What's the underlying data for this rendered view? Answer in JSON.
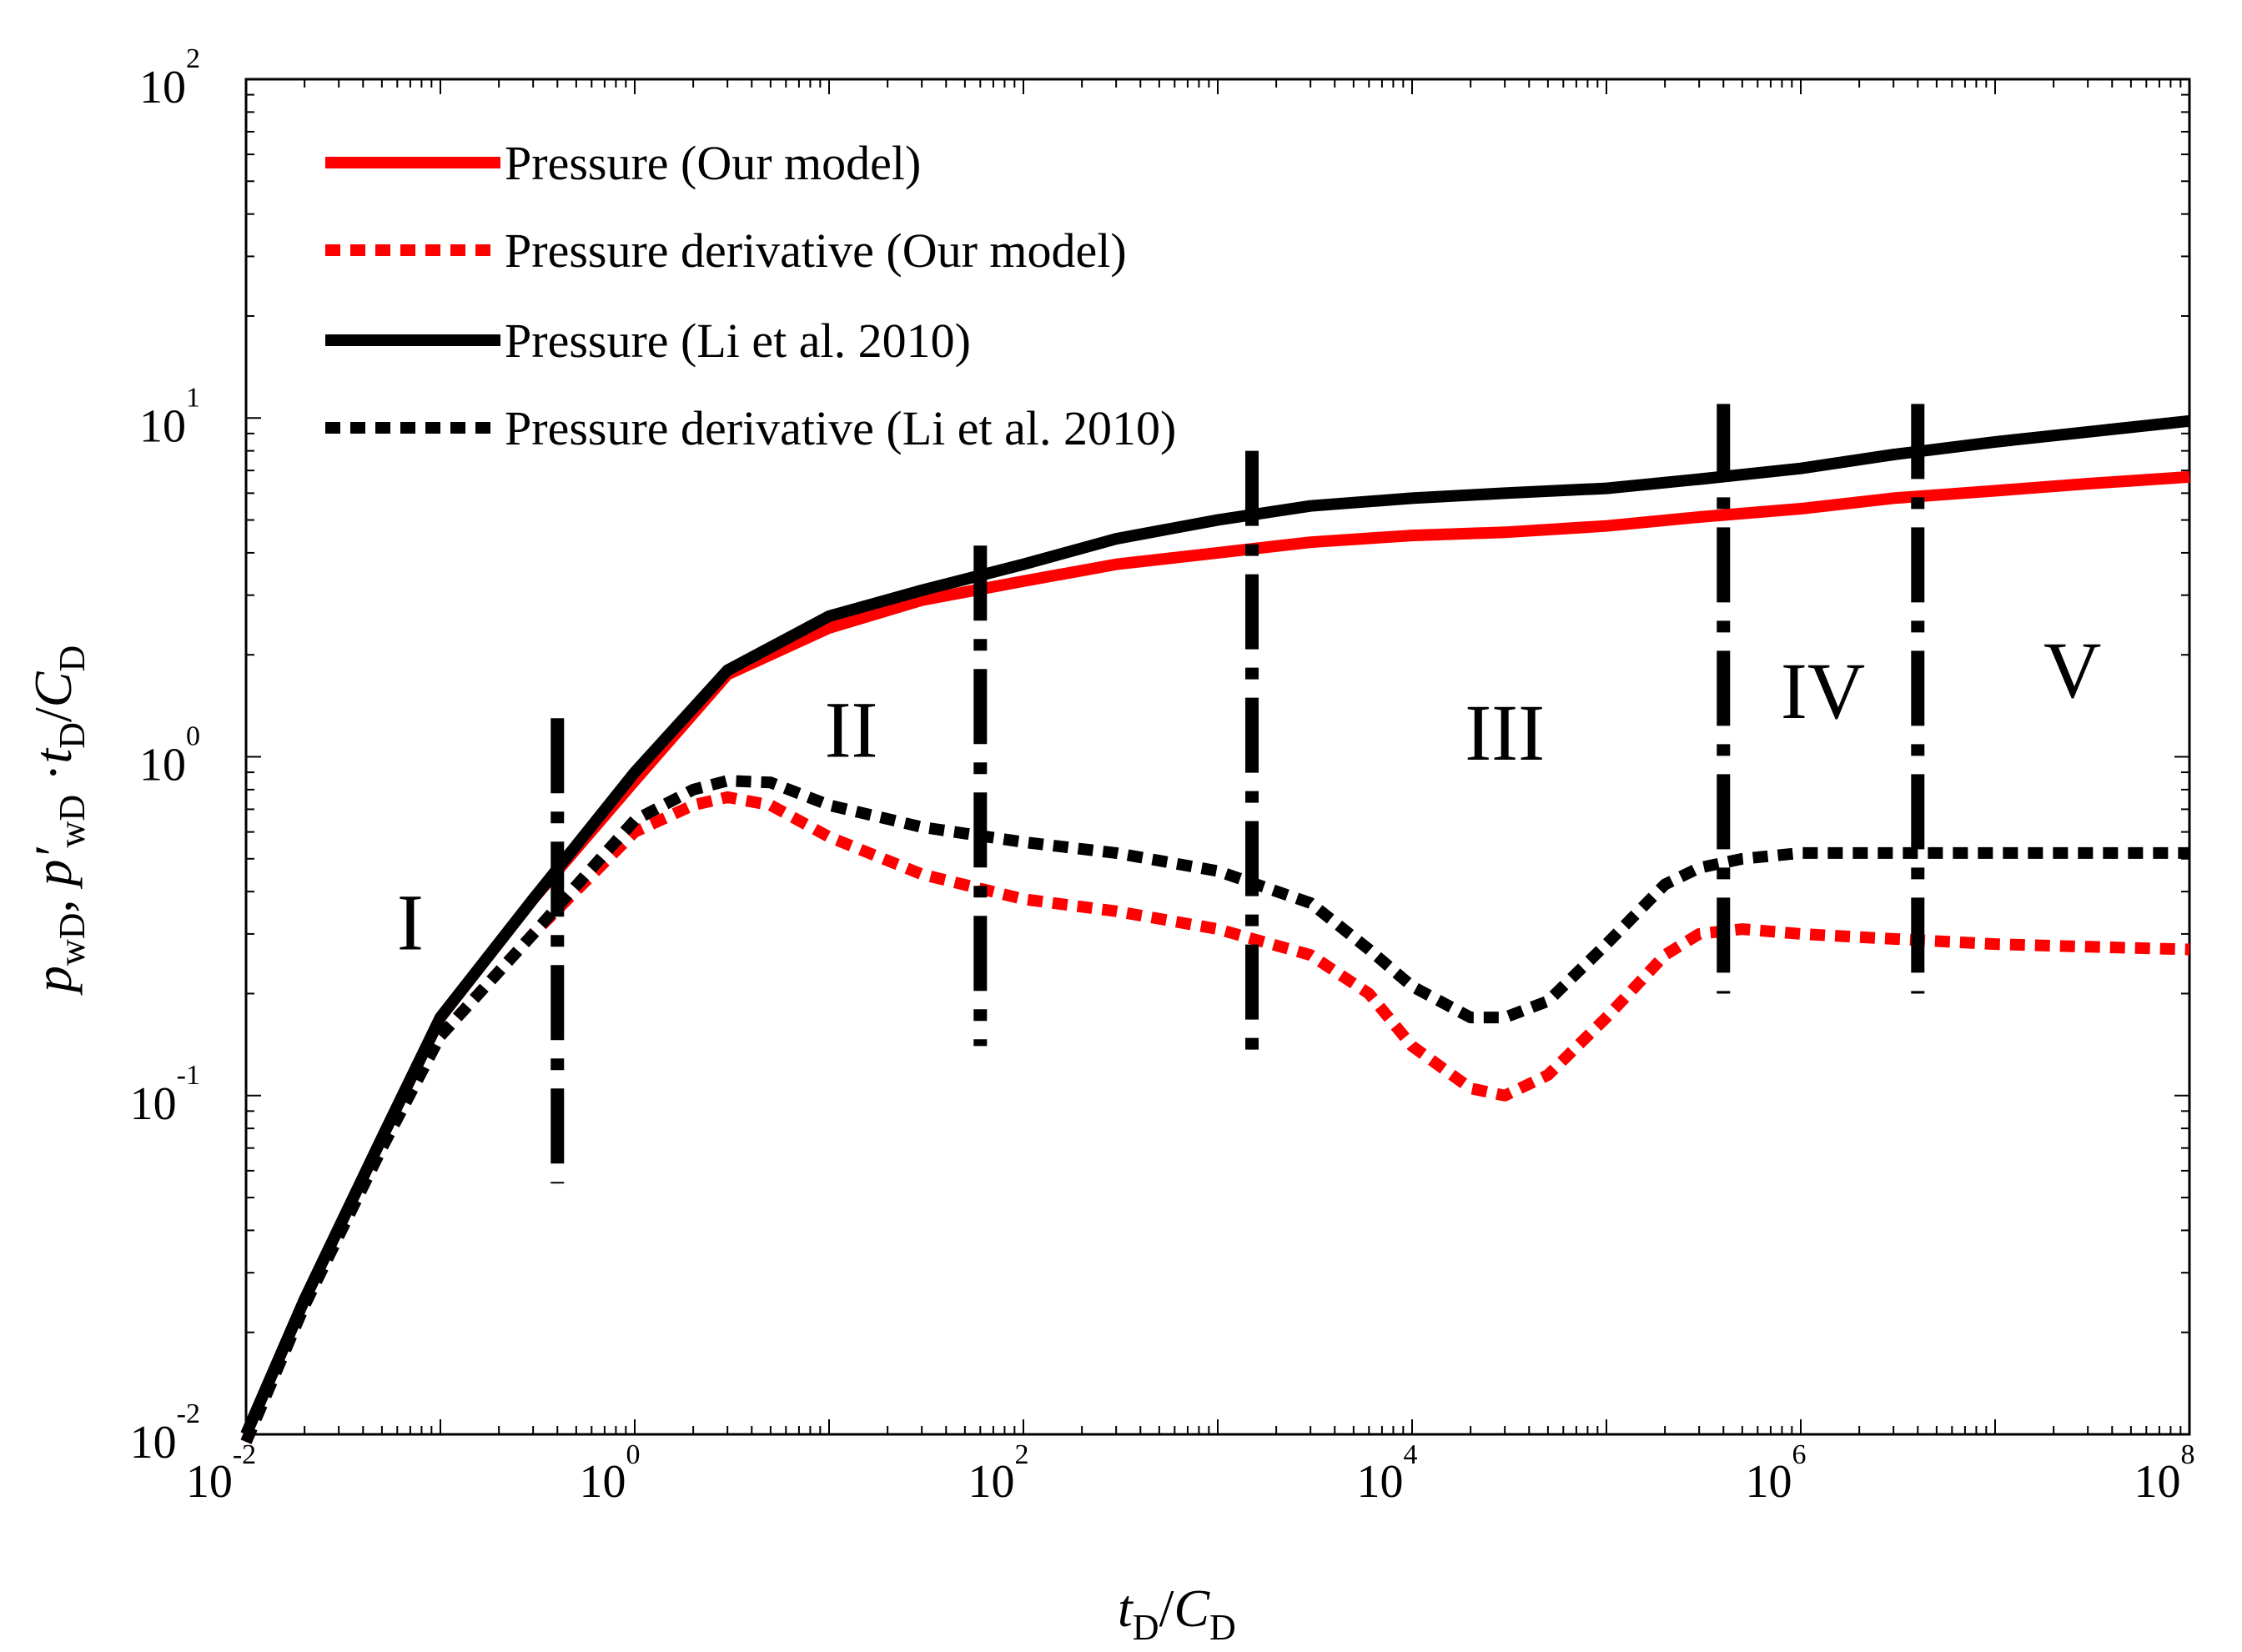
{
  "chart_data": {
    "type": "line",
    "xscale": "log",
    "yscale": "log",
    "xlim": [
      0.01,
      100000000
    ],
    "ylim": [
      0.01,
      100
    ],
    "x_ticks": [
      {
        "base": "10",
        "exp": "-2"
      },
      {
        "base": "10",
        "exp": "0"
      },
      {
        "base": "10",
        "exp": "2"
      },
      {
        "base": "10",
        "exp": "4"
      },
      {
        "base": "10",
        "exp": "6"
      },
      {
        "base": "10",
        "exp": "8"
      }
    ],
    "y_ticks": [
      {
        "base": "10",
        "exp": "-2"
      },
      {
        "base": "10",
        "exp": "-1"
      },
      {
        "base": "10",
        "exp": "0"
      },
      {
        "base": "10",
        "exp": "1"
      },
      {
        "base": "10",
        "exp": "2"
      }
    ],
    "xlabel": {
      "t": "t",
      "sub1": "D",
      "slash": "/",
      "c": "C",
      "sub2": "D"
    },
    "ylabel": {
      "p": "p",
      "sub_wd": "wD",
      "comma": ", ",
      "pprime": "p′",
      "sub_wd2": "wD",
      "dot": " ·",
      "t": "t",
      "sub_d": "D",
      "slash": "/",
      "c": "C",
      "sub_d2": "D"
    },
    "legend_position": "top-left",
    "series": [
      {
        "name": "Pressure (Our model)",
        "color": "#ff0000",
        "style": "solid",
        "points": [
          [
            0.01,
            0.01
          ],
          [
            0.02,
            0.025
          ],
          [
            0.05,
            0.075
          ],
          [
            0.1,
            0.17
          ],
          [
            0.3,
            0.38
          ],
          [
            1,
            0.85
          ],
          [
            3,
            1.75
          ],
          [
            10,
            2.4
          ],
          [
            30,
            2.9
          ],
          [
            100,
            3.3
          ],
          [
            300,
            3.7
          ],
          [
            1000,
            4.0
          ],
          [
            3000,
            4.3
          ],
          [
            10000,
            4.5
          ],
          [
            30000,
            4.6
          ],
          [
            100000,
            4.8
          ],
          [
            300000,
            5.1
          ],
          [
            1000000,
            5.4
          ],
          [
            3000000,
            5.8
          ],
          [
            10000000,
            6.1
          ],
          [
            30000000,
            6.4
          ],
          [
            100000000,
            6.7
          ]
        ]
      },
      {
        "name": "Pressure derivative (Our model)",
        "color": "#ff0000",
        "style": "dotted",
        "points": [
          [
            0.01,
            0.0095
          ],
          [
            0.02,
            0.024
          ],
          [
            0.05,
            0.07
          ],
          [
            0.1,
            0.15
          ],
          [
            0.3,
            0.3
          ],
          [
            1,
            0.6
          ],
          [
            2,
            0.72
          ],
          [
            3,
            0.76
          ],
          [
            5,
            0.72
          ],
          [
            10,
            0.58
          ],
          [
            30,
            0.45
          ],
          [
            100,
            0.38
          ],
          [
            300,
            0.35
          ],
          [
            1000,
            0.31
          ],
          [
            3000,
            0.26
          ],
          [
            6000,
            0.2
          ],
          [
            10000,
            0.14
          ],
          [
            20000,
            0.105
          ],
          [
            30000,
            0.1
          ],
          [
            50000,
            0.115
          ],
          [
            100000,
            0.17
          ],
          [
            200000,
            0.26
          ],
          [
            300000,
            0.3
          ],
          [
            500000,
            0.31
          ],
          [
            1000000,
            0.3
          ],
          [
            3000000,
            0.29
          ],
          [
            10000000,
            0.28
          ],
          [
            30000000,
            0.275
          ],
          [
            100000000,
            0.27
          ]
        ]
      },
      {
        "name": "Pressure (Li et al. 2010)",
        "color": "#000000",
        "style": "solid",
        "points": [
          [
            0.01,
            0.01
          ],
          [
            0.02,
            0.025
          ],
          [
            0.05,
            0.075
          ],
          [
            0.1,
            0.17
          ],
          [
            0.3,
            0.38
          ],
          [
            1,
            0.9
          ],
          [
            3,
            1.8
          ],
          [
            10,
            2.6
          ],
          [
            30,
            3.1
          ],
          [
            100,
            3.7
          ],
          [
            300,
            4.4
          ],
          [
            1000,
            5.0
          ],
          [
            3000,
            5.5
          ],
          [
            10000,
            5.8
          ],
          [
            30000,
            6.0
          ],
          [
            100000,
            6.2
          ],
          [
            300000,
            6.6
          ],
          [
            1000000,
            7.1
          ],
          [
            3000000,
            7.8
          ],
          [
            10000000,
            8.5
          ],
          [
            30000000,
            9.1
          ],
          [
            100000000,
            9.8
          ]
        ]
      },
      {
        "name": "Pressure derivative (Li et al. 2010)",
        "color": "#000000",
        "style": "dotted",
        "points": [
          [
            0.01,
            0.0095
          ],
          [
            0.02,
            0.024
          ],
          [
            0.05,
            0.07
          ],
          [
            0.1,
            0.15
          ],
          [
            0.3,
            0.3
          ],
          [
            1,
            0.65
          ],
          [
            2,
            0.8
          ],
          [
            3,
            0.85
          ],
          [
            5,
            0.84
          ],
          [
            10,
            0.72
          ],
          [
            30,
            0.62
          ],
          [
            100,
            0.56
          ],
          [
            300,
            0.52
          ],
          [
            1000,
            0.46
          ],
          [
            3000,
            0.37
          ],
          [
            6000,
            0.27
          ],
          [
            10000,
            0.21
          ],
          [
            20000,
            0.17
          ],
          [
            30000,
            0.17
          ],
          [
            50000,
            0.19
          ],
          [
            100000,
            0.28
          ],
          [
            200000,
            0.42
          ],
          [
            300000,
            0.47
          ],
          [
            500000,
            0.5
          ],
          [
            1000000,
            0.52
          ],
          [
            3000000,
            0.52
          ],
          [
            10000000,
            0.52
          ],
          [
            30000000,
            0.52
          ],
          [
            100000000,
            0.52
          ]
        ]
      }
    ],
    "dividers": [
      {
        "x": 0.4,
        "y_top": 1.3,
        "y_bottom": 0.055
      },
      {
        "x": 60,
        "y_top": 4.2,
        "y_bottom": 0.14
      },
      {
        "x": 1500,
        "y_top": 8.0,
        "y_bottom": 0.13
      },
      {
        "x": 400000,
        "y_top": 11.0,
        "y_bottom": 0.2
      },
      {
        "x": 4000000,
        "y_top": 11.0,
        "y_bottom": 0.2
      }
    ],
    "regions": [
      {
        "label": "I",
        "x": 0.07,
        "y": 0.27
      },
      {
        "label": "II",
        "x": 13,
        "y": 1.0
      },
      {
        "label": "III",
        "x": 30000,
        "y": 0.98
      },
      {
        "label": "IV",
        "x": 1300000,
        "y": 1.3
      },
      {
        "label": "V",
        "x": 25000000,
        "y": 1.5
      }
    ]
  }
}
